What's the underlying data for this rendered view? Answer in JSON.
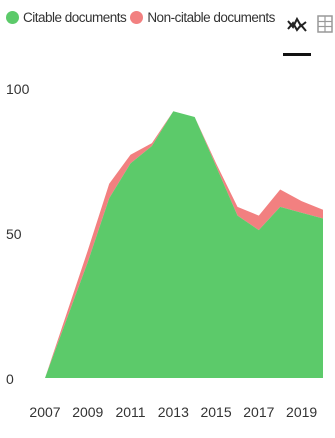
{
  "legend": {
    "items": [
      {
        "label": "Citable documents",
        "color": "#5cca6a"
      },
      {
        "label": "Non-citable documents",
        "color": "#f28080"
      }
    ]
  },
  "toolbar": {
    "chart_icon": "area-chart-icon",
    "table_icon": "table-icon",
    "active": "chart"
  },
  "chart_data": {
    "type": "area",
    "stacked": true,
    "x": [
      2007,
      2008,
      2009,
      2010,
      2011,
      2012,
      2013,
      2014,
      2015,
      2016,
      2017,
      2018,
      2019,
      2020
    ],
    "series": [
      {
        "name": "Citable documents",
        "color": "#5cca6a",
        "values": [
          0,
          20,
          40,
          62,
          74,
          80,
          92,
          90,
          73,
          56,
          51,
          59,
          57,
          55
        ]
      },
      {
        "name": "Non-citable documents",
        "color": "#f28080",
        "values": [
          0,
          2,
          4,
          5,
          3,
          1,
          0,
          0,
          1,
          3,
          5,
          6,
          4,
          3
        ]
      }
    ],
    "ylim": [
      0,
      100
    ],
    "yticks": [
      0,
      50,
      100
    ],
    "xticks": [
      2007,
      2009,
      2011,
      2013,
      2015,
      2017,
      2019
    ],
    "grid": false,
    "legend_position": "top-left",
    "title": "",
    "xlabel": "",
    "ylabel": ""
  }
}
